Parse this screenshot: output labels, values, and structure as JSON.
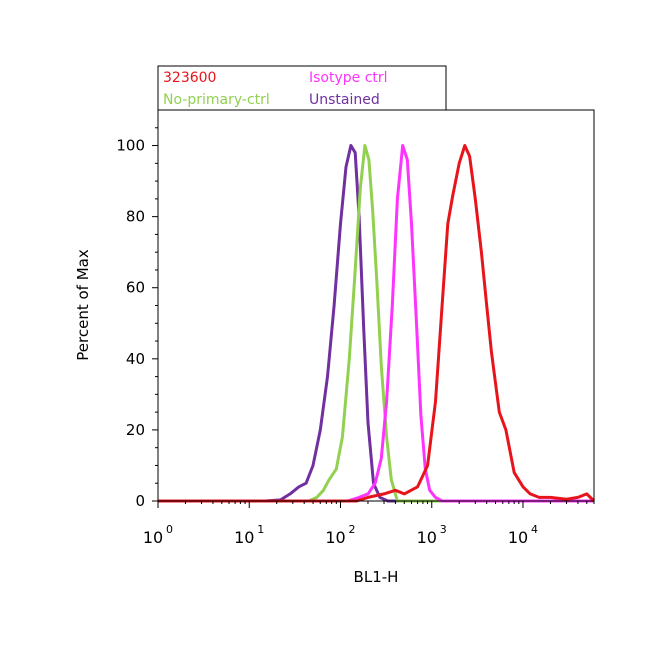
{
  "chart_data": {
    "type": "line",
    "title": "",
    "xlabel": "BL1-H",
    "ylabel": "Percent of Max",
    "x_scale": "log",
    "xlim": [
      1,
      60000
    ],
    "ylim": [
      0,
      110
    ],
    "grid": false,
    "legend_position": "top-left (above plot)",
    "x_ticks": [
      {
        "value": 1,
        "base": "10",
        "exp": "0"
      },
      {
        "value": 10,
        "base": "10",
        "exp": "1"
      },
      {
        "value": 100,
        "base": "10",
        "exp": "2"
      },
      {
        "value": 1000,
        "base": "10",
        "exp": "3"
      },
      {
        "value": 10000,
        "base": "10",
        "exp": "4"
      }
    ],
    "y_ticks": [
      0,
      20,
      40,
      60,
      80,
      100
    ],
    "series": [
      {
        "name": "Unstained",
        "color": "#7030a0",
        "x": [
          1,
          15,
          22,
          28,
          35,
          42,
          50,
          60,
          72,
          85,
          100,
          115,
          130,
          145,
          160,
          180,
          200,
          230,
          270,
          330,
          500,
          60000
        ],
        "y": [
          0,
          0,
          0.3,
          2,
          4,
          5,
          10,
          20,
          35,
          55,
          78,
          94,
          100,
          98,
          80,
          48,
          22,
          5,
          1,
          0,
          0,
          0
        ]
      },
      {
        "name": "No-primary-ctrl",
        "color": "#92d050",
        "x": [
          1,
          45,
          55,
          65,
          75,
          90,
          105,
          125,
          145,
          165,
          185,
          205,
          225,
          250,
          280,
          320,
          360,
          420,
          60000
        ],
        "y": [
          0,
          0,
          1,
          3,
          6,
          9,
          18,
          40,
          65,
          88,
          100,
          96,
          82,
          62,
          38,
          18,
          6,
          0,
          0
        ]
      },
      {
        "name": "Isotype ctrl",
        "color": "#ff33ff",
        "x": [
          1,
          120,
          160,
          200,
          240,
          280,
          320,
          370,
          420,
          480,
          540,
          600,
          680,
          760,
          850,
          950,
          1100,
          1300,
          60000
        ],
        "y": [
          0,
          0,
          1,
          2,
          5,
          12,
          28,
          55,
          85,
          100,
          96,
          78,
          50,
          24,
          9,
          3,
          1,
          0,
          0
        ]
      },
      {
        "name": "323600",
        "color": "#e8141b",
        "x": [
          1,
          150,
          200,
          300,
          400,
          500,
          700,
          900,
          1100,
          1300,
          1500,
          1700,
          2000,
          2300,
          2600,
          3000,
          3500,
          4000,
          4500,
          5500,
          6500,
          8000,
          10000,
          12000,
          15000,
          20000,
          30000,
          40000,
          50000,
          60000
        ],
        "y": [
          0,
          0,
          1,
          2,
          3,
          2,
          4,
          10,
          28,
          55,
          78,
          86,
          95,
          100,
          97,
          85,
          70,
          55,
          42,
          25,
          20,
          8,
          4,
          2,
          1,
          1,
          0.5,
          1,
          2,
          0
        ]
      }
    ]
  },
  "legend": {
    "items": [
      {
        "label": "323600",
        "color": "#e8141b"
      },
      {
        "label": "Isotype ctrl",
        "color": "#ff33ff"
      },
      {
        "label": "No-primary-ctrl",
        "color": "#92d050"
      },
      {
        "label": "Unstained",
        "color": "#7030a0"
      }
    ]
  }
}
